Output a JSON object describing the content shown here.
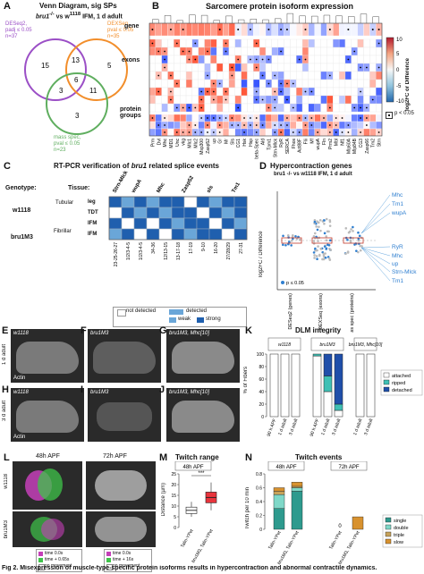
{
  "panelA": {
    "letter": "A",
    "title": "Venn Diagram, sig SPs",
    "subtitle_pre": "bru1",
    "subtitle_sup1": "-/-",
    "subtitle_mid": " vs w",
    "subtitle_sup2": "1118",
    "subtitle_post": " IFM, 1 d adult",
    "set1": [
      "DESeq2,",
      "padj ≤ 0.05",
      "n=37"
    ],
    "set2": [
      "DEXSeq,",
      "pval ≤ 0.05",
      "n=35"
    ],
    "set3": [
      "mass spec,",
      "pval ≤ 0.05",
      "n=23"
    ],
    "counts": [
      "15",
      "13",
      "5",
      "6",
      "3",
      "11",
      "3"
    ],
    "colors": {
      "set1": "#9b4fc6",
      "set2": "#f28e2b",
      "set3": "#5fae5f"
    }
  },
  "panelB": {
    "letter": "B",
    "title": "Sarcomere protein isoform expression",
    "row_labels": [
      "gene",
      "exons",
      "protein groups"
    ],
    "legend_title": "log2FC or Difference",
    "legend_ticks": [
      "10",
      "5",
      "0",
      "-5",
      "-10"
    ],
    "sig_label": "p < 0.05",
    "columns": [
      "Prm",
      "Dvl",
      "Mhc",
      "MD1",
      "Unc",
      "vkg",
      "Mlc1",
      "Mlc2",
      "Msp300",
      "Zasp52",
      "up",
      "Gr",
      "Mr",
      "Sls",
      "CG1",
      "Hsk",
      "Hsp",
      "beta-Spec",
      "Ald",
      "Tpm1",
      "Strn-Mlck",
      "RyR",
      "SERCA",
      "Fhos",
      "Act88F",
      "Flii",
      "Mf",
      "wupA",
      "Fln",
      "Prm2",
      "Mbl",
      "Nf1",
      "Mlp60A",
      "Mlp84B",
      "CG3",
      "Zasp66",
      "Tm2",
      "Strn"
    ]
  },
  "panelC": {
    "letter": "C",
    "title_pre": "RT-PCR verification of ",
    "title_it": "bru1",
    "title_post": " related splice events",
    "genotype_label": "Genotype:",
    "tissue_label": "Tissue:",
    "genes": [
      "Strn-Mlck",
      "wupA",
      "Mhc",
      "Zasp52",
      "sls",
      "Tm1"
    ],
    "genotypes": [
      "w1118",
      "bru1M3"
    ],
    "tissues": [
      "Tubular",
      "Fibrillar"
    ],
    "row_tissues": [
      "leg",
      "TDT",
      "IFM",
      "IFM"
    ],
    "exons": [
      "23-25-26-27",
      "1/2/3-4-5",
      "1/2/3-4-5",
      "34-36",
      "12/13-15",
      "13-17-18",
      "17-19",
      "9-10",
      "16-20",
      "27/28/29",
      "27-31"
    ],
    "legend": [
      "not detected",
      "detected",
      "weak",
      "strong"
    ],
    "colors": {
      "strong": "#1f5fae",
      "weak": "#6aa6d8",
      "none": "#ffffff"
    }
  },
  "panelD": {
    "letter": "D",
    "title": "Hypercontraction genes",
    "subtitle": "bru1 -/- vs w1118 IFM, 1 d adult",
    "ylabel": "log2FC / Difference",
    "xcats": [
      "DESeq2 (genes)",
      "DEXSeq (exons)",
      "mass spec (proteins)"
    ],
    "sig_label": "p ≤ 0.05",
    "callouts": [
      "Mhc",
      "Tm1",
      "wupA",
      "RyR",
      "Mhc",
      "up",
      "Strn-Mlck",
      "Tm1"
    ]
  },
  "panelE": {
    "letter": "E",
    "label": "w1118",
    "stage": "1 d adult",
    "stain": "Actin"
  },
  "panelF": {
    "letter": "F",
    "label": "bru1M3"
  },
  "panelG": {
    "letter": "G",
    "label": "bru1M3, Mhc[10]"
  },
  "panelH": {
    "letter": "H",
    "label": "w1118",
    "stage": "3 d adult",
    "stain": "Actin"
  },
  "panelI": {
    "letter": "I",
    "label": "bru1M3"
  },
  "panelJ": {
    "letter": "J",
    "label": "bru1M3, Mhc[10]"
  },
  "panelK": {
    "letter": "K",
    "title": "DLM integrity",
    "groups": [
      "w1118",
      "bru1M3",
      "bru1M3, Mhc[10]"
    ],
    "ylabel": "% of Fibers",
    "yticks": [
      "100",
      "80",
      "60",
      "40",
      "20",
      "0"
    ],
    "xlabels": [
      "90 h APF",
      "1 d adult",
      "3 d adult",
      "90 h APF",
      "1 d adult",
      "3 d adult",
      "1 d adult",
      "3 d adult"
    ],
    "legend": [
      "attached",
      "ripped",
      "detached"
    ],
    "colors": {
      "attached": "#ffffff",
      "ripped": "#3fc0b5",
      "detached": "#1f4faa"
    },
    "chart_data": {
      "type": "bar",
      "categories": [
        "90 h APF",
        "1 d adult",
        "3 d adult",
        "90 h APF",
        "1 d adult",
        "3 d adult",
        "1 d adult",
        "3 d adult"
      ],
      "series": [
        {
          "name": "attached",
          "values": [
            100,
            100,
            100,
            97,
            40,
            10,
            100,
            100
          ]
        },
        {
          "name": "ripped",
          "values": [
            0,
            0,
            0,
            3,
            25,
            10,
            0,
            0
          ]
        },
        {
          "name": "detached",
          "values": [
            0,
            0,
            0,
            0,
            35,
            80,
            0,
            0
          ]
        }
      ],
      "ylim": [
        0,
        100
      ]
    }
  },
  "panelL": {
    "letter": "L",
    "cols": [
      "48h APF",
      "72h APF"
    ],
    "rows": [
      "w1118",
      "bru1M3"
    ],
    "legend_top": [
      "time 0.0s",
      "time + 0.65s",
      "no movement"
    ],
    "legend_bottom": [
      "time 0.0s",
      "time + 16s",
      "no movement"
    ]
  },
  "panelM": {
    "letter": "M",
    "title": "Twitch range",
    "stage": "48h APF",
    "ylabel": "Distance (µm)",
    "yticks": [
      "25",
      "20",
      "15",
      "10",
      "5",
      "0"
    ],
    "sig": "***",
    "xlabels": [
      "Talin-YPet",
      "bru1M3, Talin-YPet"
    ],
    "chart_data": {
      "type": "box",
      "categories": [
        "Talin-YPet",
        "bru1M3, Talin-YPet"
      ],
      "median": [
        8,
        14
      ],
      "q1": [
        6.5,
        11.5
      ],
      "q3": [
        9.5,
        16.5
      ],
      "whisker_low": [
        5,
        8
      ],
      "whisker_high": [
        12,
        21
      ],
      "ylim": [
        0,
        25
      ]
    }
  },
  "panelN": {
    "letter": "N",
    "title": "Twitch events",
    "stages": [
      "48h APF",
      "72h APF"
    ],
    "ylabel": "Twitch per 10 min",
    "yticks": [
      "0.8",
      "0.6",
      "0.4",
      "0.2",
      "0"
    ],
    "xlabels": [
      "Talin-YPet",
      "bru1M3, Talin-YPet",
      "Talin-YPet",
      "bru1M3, Talin-YPet"
    ],
    "legend": [
      "single",
      "double",
      "triple",
      "slow"
    ],
    "colors": {
      "single": "#2e9a8e",
      "double": "#7fd8c8",
      "triple": "#c6a25a",
      "slow": "#d8922f"
    },
    "chart_data": {
      "type": "bar",
      "categories": [
        "Talin-YPet 48h",
        "bru1M3 48h",
        "Talin-YPet 72h",
        "bru1M3 72h"
      ],
      "series": [
        {
          "name": "single",
          "values": [
            0.3,
            0.55,
            0,
            0
          ]
        },
        {
          "name": "double",
          "values": [
            0.2,
            0.05,
            0,
            0
          ]
        },
        {
          "name": "triple",
          "values": [
            0.05,
            0.02,
            0,
            0
          ]
        },
        {
          "name": "slow",
          "values": [
            0.05,
            0.06,
            0,
            0.18
          ]
        }
      ],
      "ylim": [
        0,
        0.8
      ]
    }
  },
  "caption": "Fig 2.  Misexpression of muscle-type-specific protein isoforms results in hypercontraction and abnormal contractile dynamics."
}
